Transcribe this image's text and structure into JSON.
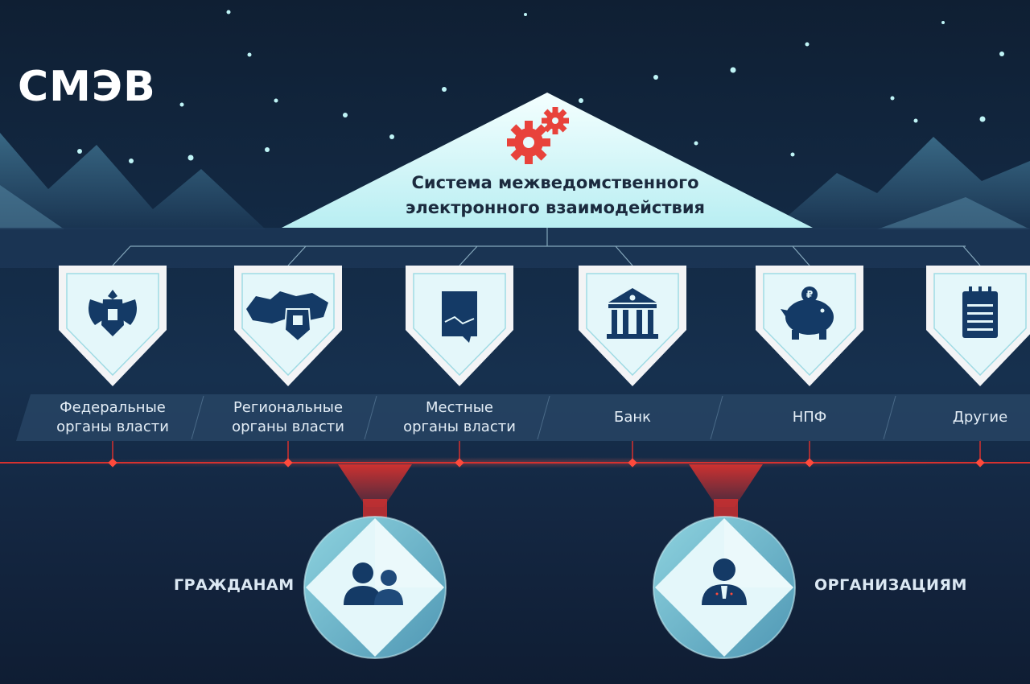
{
  "logo": "СМЭВ",
  "system": {
    "title_line1": "Система межведомственного",
    "title_line2": "электронного взаимодействия",
    "icon": "gears-icon",
    "accent_color": "#e8423b"
  },
  "participants": [
    {
      "label_line1": "Федеральные",
      "label_line2": "органы власти",
      "icon": "eagle-emblem-icon"
    },
    {
      "label_line1": "Региональные",
      "label_line2": "органы власти",
      "icon": "russia-map-emblem-icon"
    },
    {
      "label_line1": "Местные",
      "label_line2": "органы власти",
      "icon": "document-icon"
    },
    {
      "label_line1": "Банк",
      "label_line2": "",
      "icon": "bank-icon"
    },
    {
      "label_line1": "НПФ",
      "label_line2": "",
      "icon": "piggy-bank-icon"
    },
    {
      "label_line1": "Другие",
      "label_line2": "",
      "icon": "notepad-icon"
    }
  ],
  "audiences": [
    {
      "label": "ГРАЖДАНАМ",
      "icon": "people-icon"
    },
    {
      "label": "ОРГАНИЗАЦИЯМ",
      "icon": "businessman-icon"
    }
  ],
  "colors": {
    "card": "#e4f7fa",
    "icon": "#143a66",
    "bus_line": "#d6312f"
  }
}
